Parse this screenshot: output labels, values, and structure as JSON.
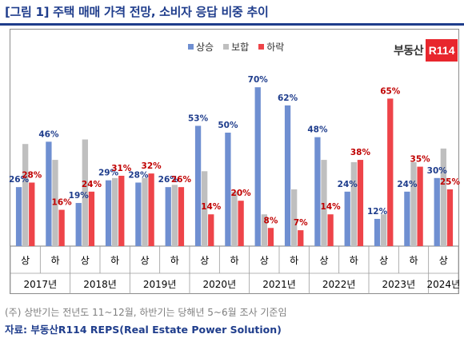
{
  "title": "[그림 1] 주택 매매 가격 전망, 소비자 응답 비중 추이",
  "logo": {
    "text": "부동산",
    "mark": "R114"
  },
  "note": "(주) 상반기는 전년도 11~12월, 하반기는 당해년 5~6월 조사 기준임",
  "source": "자료: 부동산R114 REPS(Real Estate Power Solution)",
  "chart_data": {
    "type": "bar",
    "categories": [
      "2017년 상",
      "2017년 하",
      "2018년 상",
      "2018년 하",
      "2019년 상",
      "2019년 하",
      "2020년 상",
      "2020년 하",
      "2021년 상",
      "2021년 하",
      "2022년 상",
      "2022년 하",
      "2023년 상",
      "2023년 하",
      "2024년 상"
    ],
    "x_tick_labels": [
      "상",
      "하",
      "상",
      "하",
      "상",
      "하",
      "상",
      "하",
      "상",
      "하",
      "상",
      "하",
      "상",
      "하",
      "상"
    ],
    "x_group_labels": [
      "2017년",
      "2018년",
      "2019년",
      "2020년",
      "2021년",
      "2022년",
      "2023년",
      "2024년"
    ],
    "series": [
      {
        "name": "상승",
        "color": "#6f8fd1",
        "label_color": "#1f3d8c",
        "labeled": true,
        "values": [
          26,
          46,
          19,
          29,
          28,
          26,
          53,
          50,
          70,
          62,
          48,
          24,
          12,
          24,
          30
        ]
      },
      {
        "name": "보합",
        "color": "#bfbfbf",
        "labeled": false,
        "values": [
          45,
          38,
          47,
          30,
          30,
          27,
          33,
          24,
          14,
          25,
          38,
          37,
          14,
          37,
          43
        ]
      },
      {
        "name": "하락",
        "color": "#ee4449",
        "label_color": "#c00000",
        "labeled": true,
        "values": [
          28,
          16,
          24,
          31,
          32,
          26,
          14,
          20,
          8,
          7,
          14,
          38,
          65,
          35,
          25
        ]
      }
    ],
    "legend_position": "top-center",
    "ylim": [
      0,
      75
    ],
    "grid": false
  }
}
